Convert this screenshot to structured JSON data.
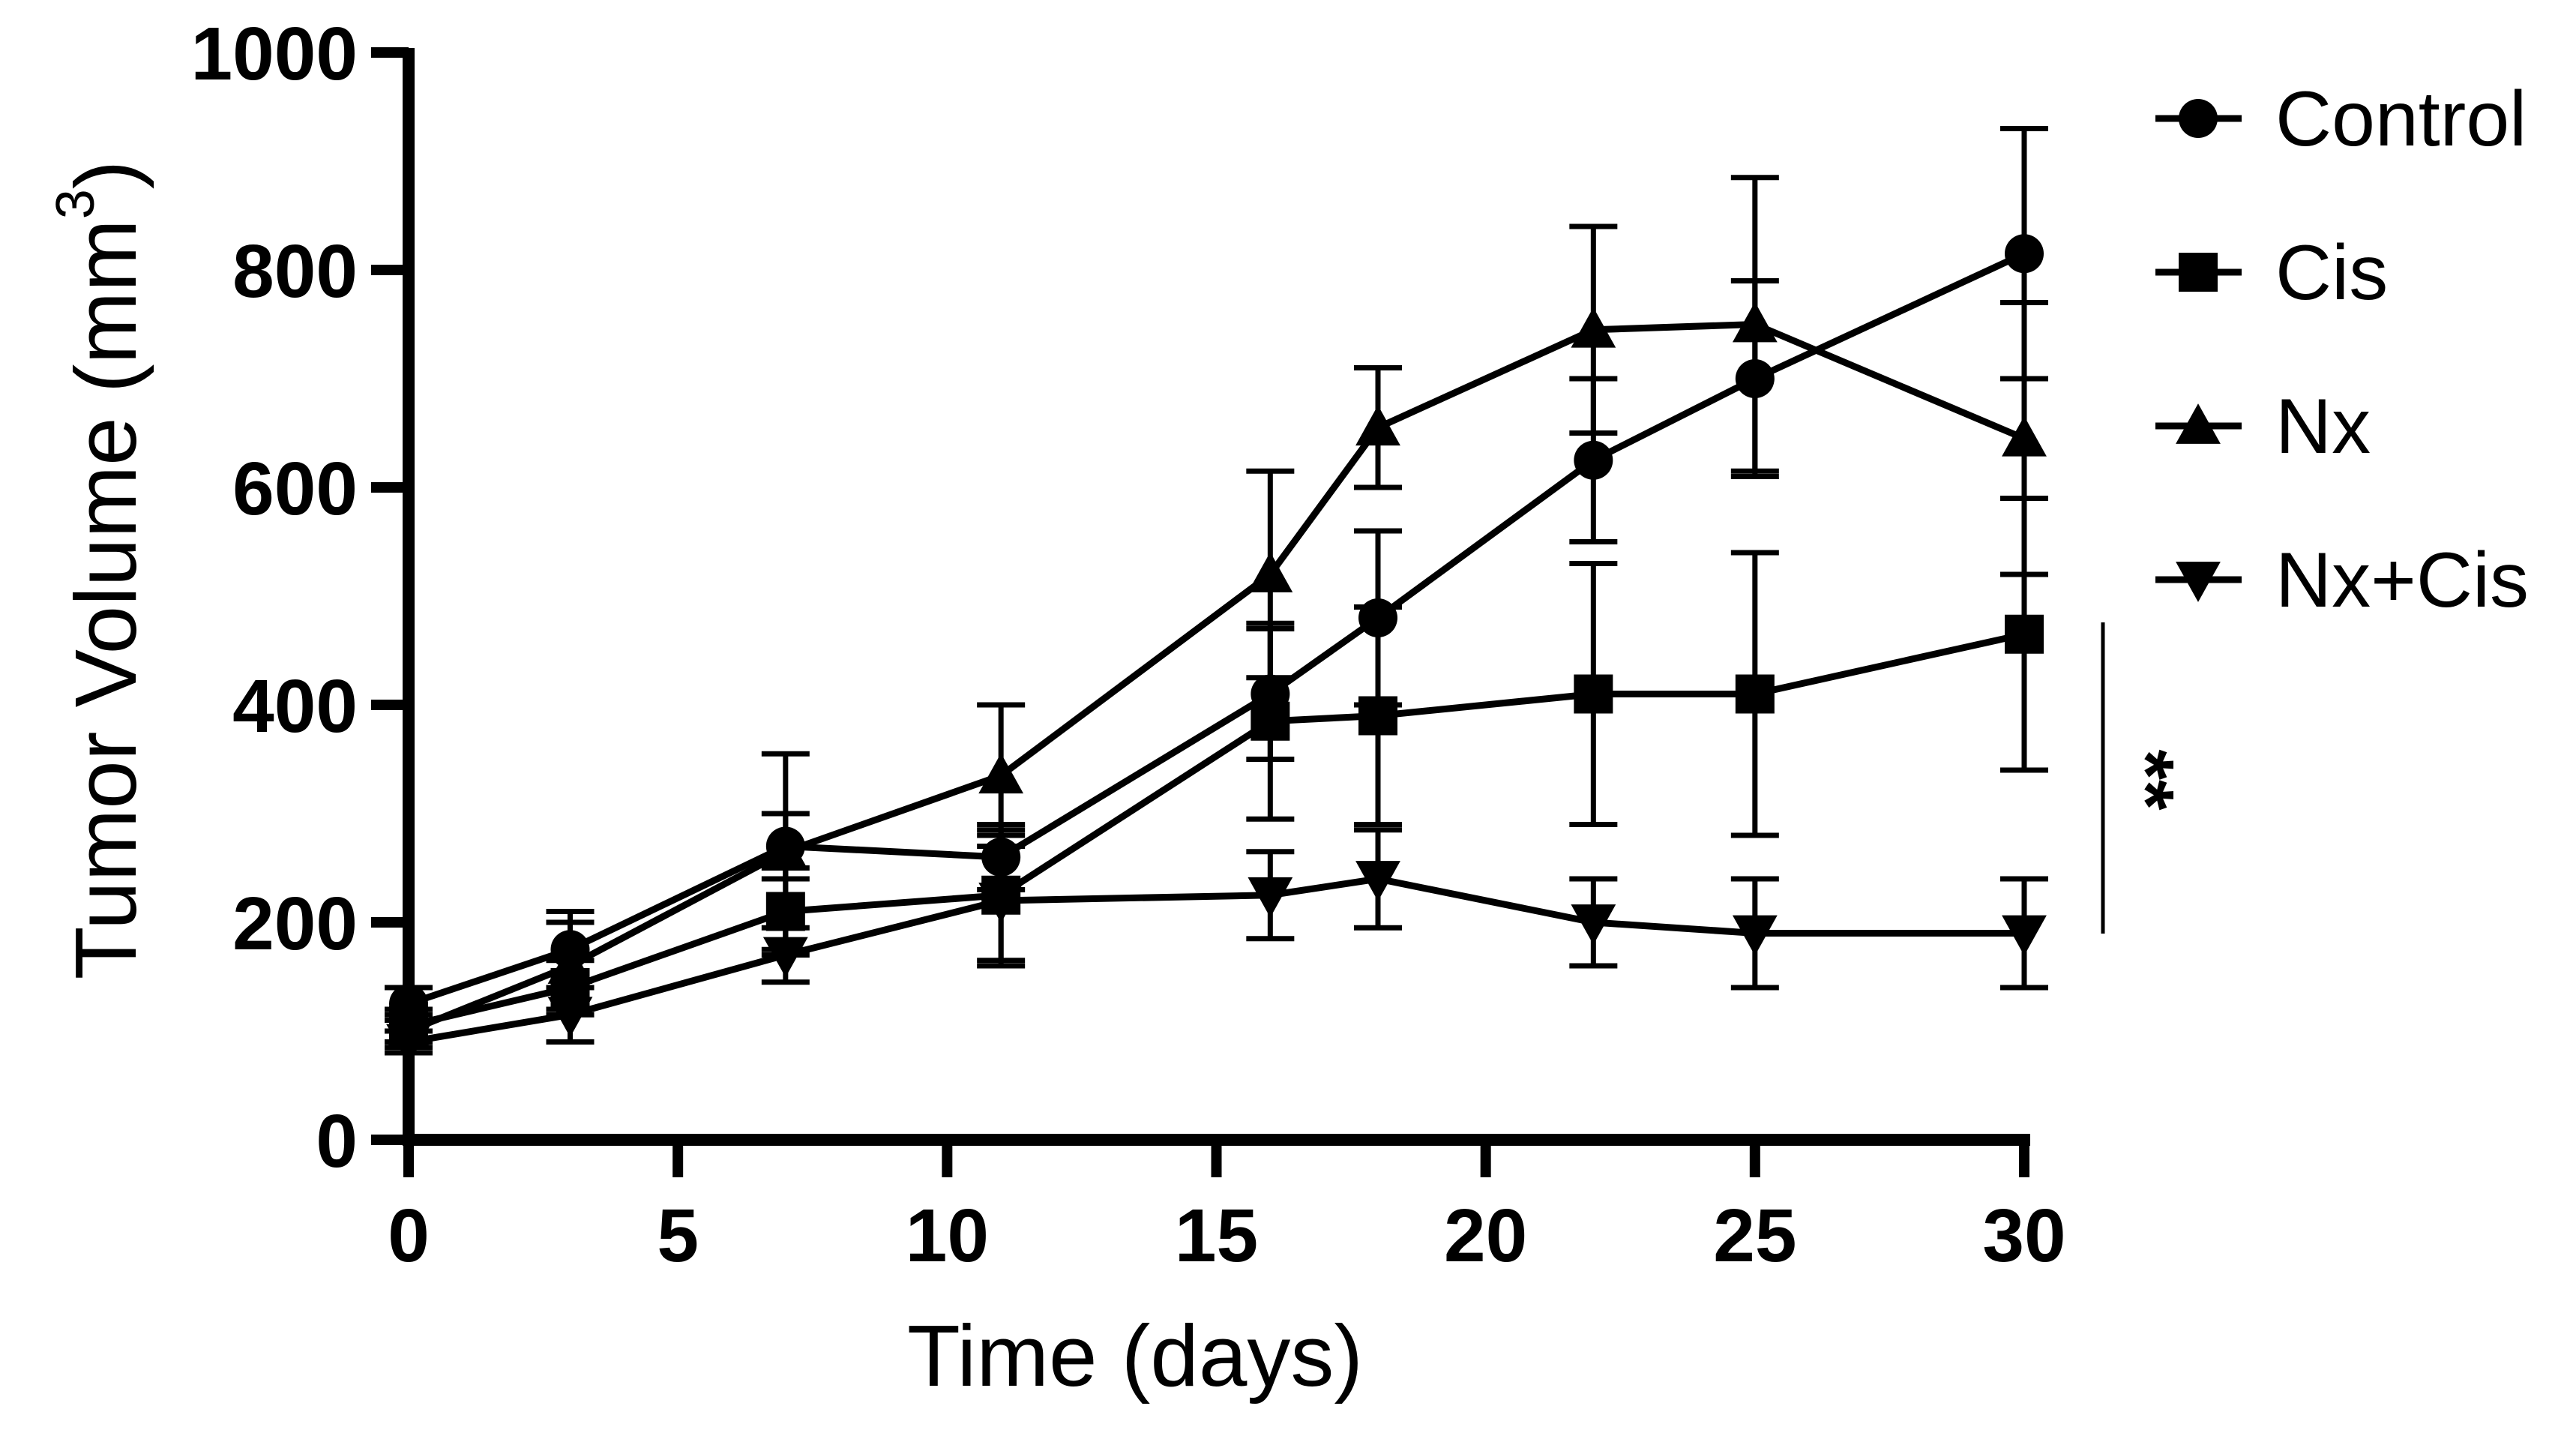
{
  "chart_data": {
    "type": "line",
    "xlabel": "Time (days)",
    "ylabel": "Tumor Volume (mm",
    "ylabel_sup": "3",
    "ylabel_close": ")",
    "xlim": [
      0,
      30
    ],
    "ylim": [
      0,
      1000
    ],
    "xticks": [
      0,
      5,
      10,
      15,
      20,
      25,
      30
    ],
    "yticks": [
      0,
      200,
      400,
      600,
      800,
      1000
    ],
    "x": [
      0,
      3,
      7,
      11,
      16,
      18,
      22,
      25,
      30
    ],
    "series": [
      {
        "name": "Control",
        "marker": "circle",
        "values": [
          125,
          175,
          270,
          260,
          410,
          480,
          625,
          700,
          815
        ],
        "error": [
          15,
          35,
          30,
          30,
          60,
          80,
          75,
          90,
          115
        ]
      },
      {
        "name": "Cis",
        "marker": "square",
        "values": [
          105,
          140,
          210,
          225,
          385,
          390,
          410,
          410,
          465
        ],
        "error": [
          15,
          25,
          40,
          60,
          90,
          100,
          120,
          130,
          125
        ]
      },
      {
        "name": "Nx",
        "marker": "triangle-up",
        "values": [
          100,
          160,
          265,
          335,
          520,
          655,
          745,
          750,
          645
        ],
        "error": [
          15,
          40,
          90,
          65,
          95,
          55,
          95,
          135,
          125
        ]
      },
      {
        "name": "Nx+Cis",
        "marker": "triangle-down",
        "values": [
          90,
          115,
          170,
          220,
          225,
          240,
          200,
          190,
          190
        ],
        "error": [
          10,
          25,
          25,
          60,
          40,
          45,
          40,
          50,
          50
        ]
      }
    ],
    "annotations": [
      {
        "text": "**",
        "description": "significance bracket between Cis and Nx+Cis at day 30"
      }
    ]
  }
}
